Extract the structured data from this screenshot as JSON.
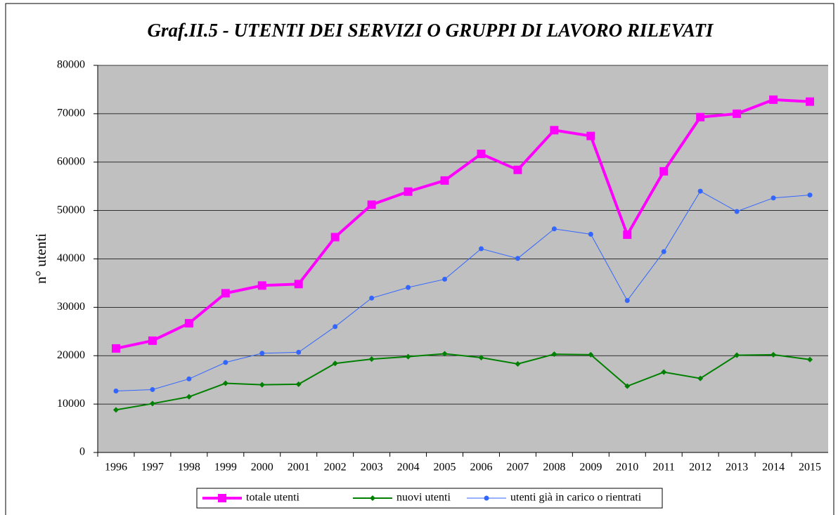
{
  "chart_data": {
    "type": "line",
    "title": "Graf.II.5 - UTENTI DEI SERVIZI O GRUPPI DI LAVORO RILEVATI",
    "y_label": "n° utenti",
    "categories": [
      "1996",
      "1997",
      "1998",
      "1999",
      "2000",
      "2001",
      "2002",
      "2003",
      "2004",
      "2005",
      "2006",
      "2007",
      "2008",
      "2009",
      "2010",
      "2011",
      "2012",
      "2013",
      "2014",
      "2015"
    ],
    "series": [
      {
        "name": "totale utenti",
        "color": "#ff00ff",
        "marker": "square",
        "width": 4,
        "values": [
          21500,
          23100,
          26700,
          32900,
          34500,
          34800,
          44500,
          51200,
          53900,
          56200,
          61700,
          58400,
          66600,
          65400,
          45000,
          58100,
          69300,
          70000,
          72900,
          72500
        ]
      },
      {
        "name": "nuovi utenti",
        "color": "#008000",
        "marker": "diamond",
        "width": 2,
        "values": [
          8800,
          10100,
          11500,
          14300,
          14000,
          14100,
          18400,
          19300,
          19800,
          20400,
          19600,
          18300,
          20300,
          20200,
          13700,
          16600,
          15300,
          20100,
          20200,
          19200
        ]
      },
      {
        "name": "utenti già in carico o rientrati",
        "color": "#3366ff",
        "marker": "circle",
        "width": 1,
        "values": [
          12700,
          13000,
          15200,
          18600,
          20500,
          20700,
          26000,
          31900,
          34100,
          35800,
          42100,
          40100,
          46200,
          45100,
          31400,
          41500,
          54000,
          49800,
          52600,
          53200
        ]
      }
    ],
    "ylim": [
      0,
      80000
    ],
    "yticks": [
      0,
      10000,
      20000,
      30000,
      40000,
      50000,
      60000,
      70000,
      80000
    ],
    "grid": true,
    "legend": "bottom"
  }
}
